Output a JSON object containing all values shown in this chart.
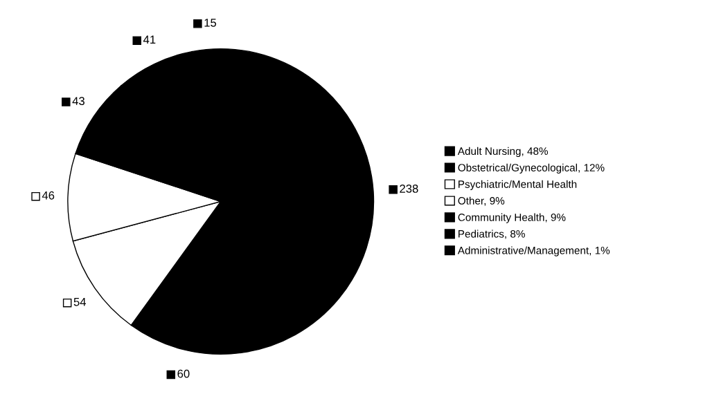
{
  "chart_data": {
    "type": "pie",
    "categories": [
      "Adult Nursing, 48%",
      "Obstetrical/Gynecological, 12%",
      "Psychiatric/Mental Health",
      "Other, 9%",
      "Community Health, 9%",
      "Pediatrics, 8%",
      "Administrative/Management, 1%"
    ],
    "values": [
      238,
      60,
      54,
      46,
      43,
      41,
      15
    ],
    "colors": [
      "#000000",
      "#000000",
      "#ffffff",
      "#ffffff",
      "#000000",
      "#000000",
      "#000000"
    ],
    "data_labels": true,
    "legend": "right"
  }
}
